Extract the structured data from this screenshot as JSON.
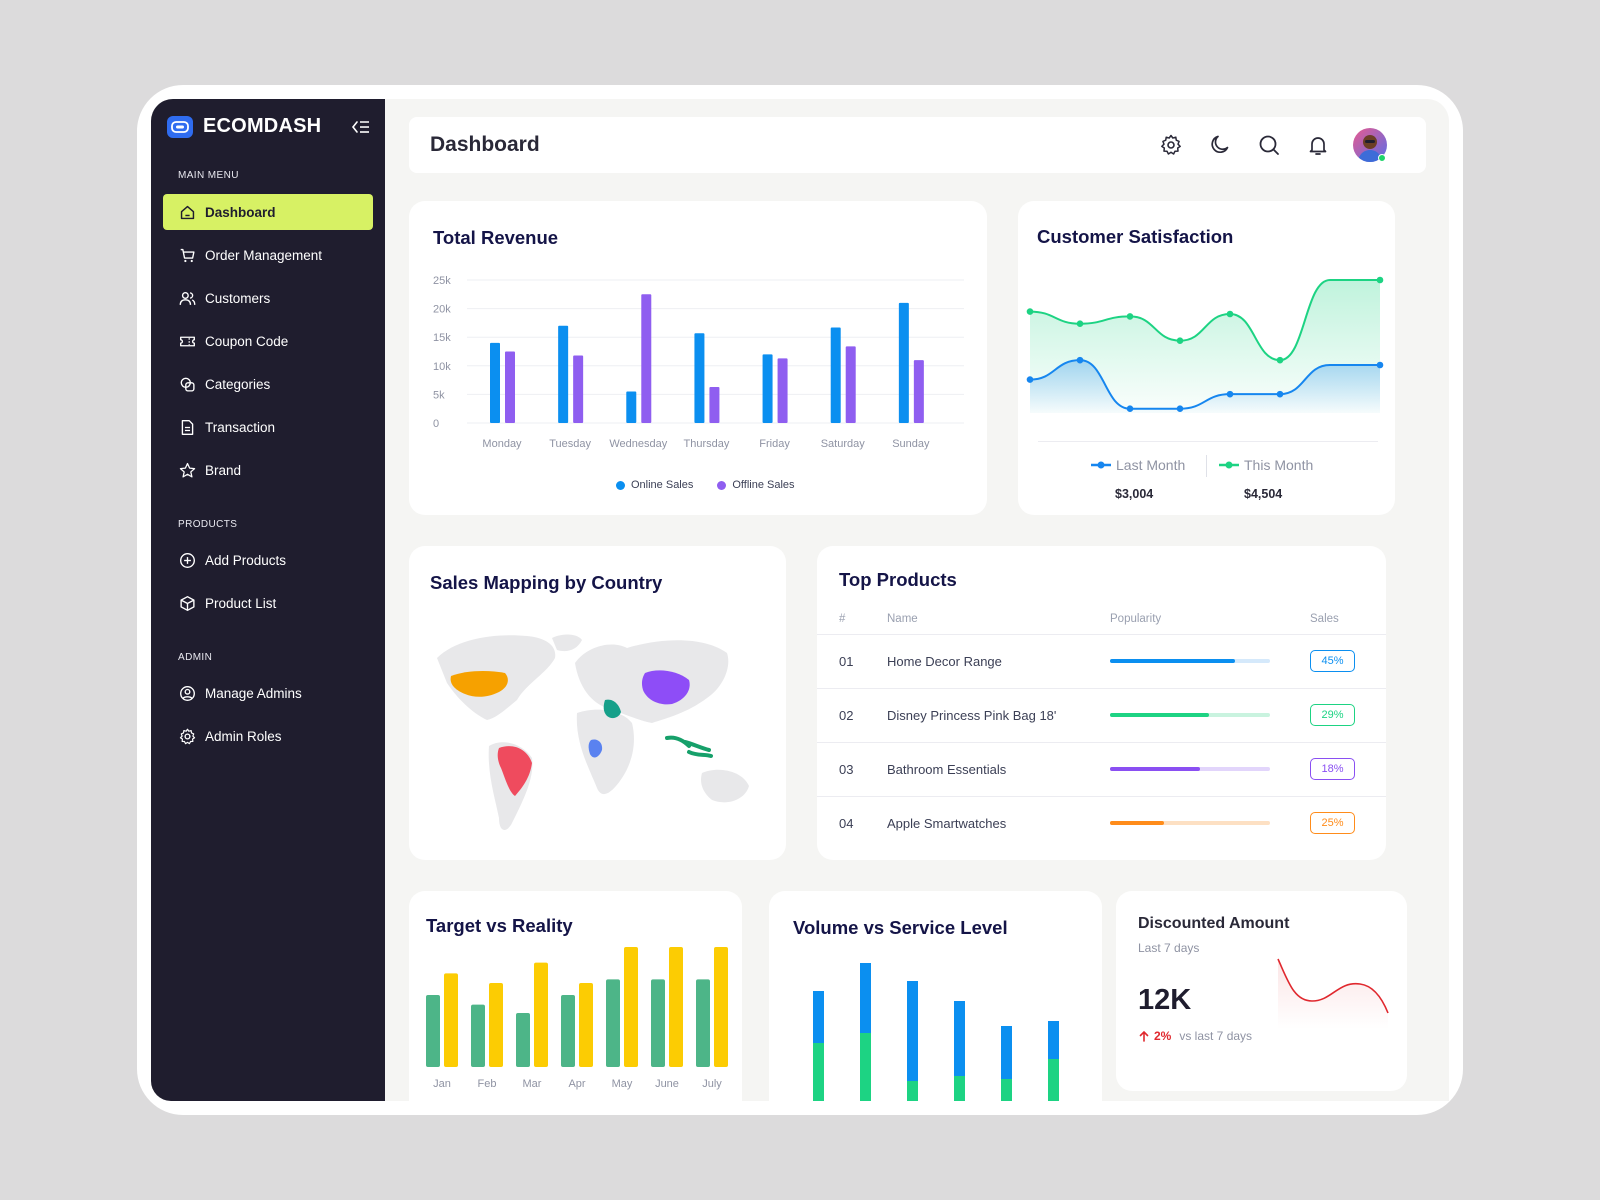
{
  "app": {
    "name": "ECOMDASH"
  },
  "sidebar": {
    "sections": [
      {
        "title": "MAIN MENU",
        "items": [
          "Dashboard",
          "Order Management",
          "Customers",
          "Coupon Code",
          "Categories",
          "Transaction",
          "Brand"
        ]
      },
      {
        "title": "PRODUCTS",
        "items": [
          "Add Products",
          "Product List"
        ]
      },
      {
        "title": "ADMIN",
        "items": [
          "Manage Admins",
          "Admin Roles"
        ]
      }
    ],
    "active": "Dashboard",
    "active_color": "#d7f164",
    "bg_color": "#1f1d2e"
  },
  "header": {
    "title": "Dashboard",
    "icons": [
      "gear-icon",
      "moon-icon",
      "search-icon",
      "bell-icon",
      "avatar"
    ],
    "avatar_status": "online"
  },
  "revenue": {
    "title": "Total Revenue",
    "legend": [
      "Online Sales",
      "Offline Sales"
    ]
  },
  "satisfaction": {
    "title": "Customer Satisfaction",
    "legend": [
      {
        "label": "Last Month",
        "value": "$3,004",
        "color": "#1686ef"
      },
      {
        "label": "This Month",
        "value": "$4,504",
        "color": "#1dd383"
      }
    ]
  },
  "mapping": {
    "title": "Sales Mapping by Country",
    "highlight_colors": {
      "usa": "#f6a100",
      "brazil": "#ef4b5e",
      "china": "#8e4df7",
      "saudi_arabia": "#16a08a",
      "congo": "#5a82f0",
      "indonesia": "#16a06a"
    }
  },
  "top_products": {
    "title": "Top Products",
    "columns": [
      "#",
      "Name",
      "Popularity",
      "Sales"
    ],
    "rows": [
      {
        "no": "01",
        "name": "Home Decor Range",
        "popularity": 0.78,
        "sales": "45%",
        "color": "#0b8ff0",
        "track": "#d5e9fb"
      },
      {
        "no": "02",
        "name": "Disney Princess Pink Bag 18'",
        "popularity": 0.62,
        "sales": "29%",
        "color": "#1dd383",
        "track": "#c9f3df"
      },
      {
        "no": "03",
        "name": "Bathroom Essentials",
        "popularity": 0.56,
        "sales": "18%",
        "color": "#8a4ff2",
        "track": "#e2d5fb"
      },
      {
        "no": "04",
        "name": "Apple Smartwatches",
        "popularity": 0.34,
        "sales": "25%",
        "color": "#ff8c1a",
        "track": "#fde0c3"
      }
    ]
  },
  "target": {
    "title": "Target vs Reality"
  },
  "volume": {
    "title": "Volume vs Service Level"
  },
  "discount": {
    "title": "Discounted Amount",
    "subtitle": "Last 7 days",
    "value": "12K",
    "change": "2%",
    "change_note": "vs last 7 days",
    "trend": "up",
    "line_color": "#e0282e"
  },
  "chart_data": [
    {
      "type": "bar",
      "title": "Total Revenue",
      "categories": [
        "Monday",
        "Tuesday",
        "Wednesday",
        "Thursday",
        "Friday",
        "Saturday",
        "Sunday"
      ],
      "series": [
        {
          "name": "Online Sales",
          "values": [
            14000,
            17000,
            5500,
            15700,
            12000,
            16700,
            21000
          ],
          "color": "#0b8ff0"
        },
        {
          "name": "Offline Sales",
          "values": [
            12500,
            11800,
            22500,
            6300,
            11300,
            13400,
            11000
          ],
          "color": "#8f5ef0"
        }
      ],
      "ylim": [
        0,
        25000
      ],
      "yticks": [
        "0",
        "5k",
        "10k",
        "15k",
        "20k",
        "25k"
      ],
      "grid": true,
      "legend": "bottom"
    },
    {
      "type": "area",
      "title": "Customer Satisfaction",
      "x": [
        1,
        2,
        3,
        4,
        5,
        6,
        7,
        8
      ],
      "series": [
        {
          "name": "Last Month",
          "values": [
            2.2,
            3.0,
            1.0,
            1.0,
            1.6,
            1.6,
            2.8,
            2.8
          ],
          "color": "#1686ef"
        },
        {
          "name": "This Month",
          "values": [
            5.0,
            4.5,
            4.8,
            3.8,
            4.9,
            3.0,
            6.3,
            6.3
          ],
          "color": "#1dd383"
        }
      ],
      "ylim": [
        0,
        7
      ]
    },
    {
      "type": "bar",
      "title": "Target vs Reality",
      "categories": [
        "Jan",
        "Feb",
        "Mar",
        "Apr",
        "May",
        "June",
        "July"
      ],
      "series": [
        {
          "values": [
            6.0,
            5.2,
            4.5,
            6.0,
            7.3,
            7.3,
            7.3
          ],
          "color": "#4db588"
        },
        {
          "values": [
            7.8,
            7.0,
            8.7,
            7.0,
            10.0,
            10.0,
            10.0
          ],
          "color": "#fccc03"
        }
      ],
      "ylim": [
        0,
        10
      ]
    },
    {
      "type": "bar",
      "stacked": true,
      "title": "Volume vs Service Level",
      "categories": [
        "1",
        "2",
        "3",
        "4",
        "5",
        "6"
      ],
      "series": [
        {
          "values": [
            5.8,
            6.8,
            2.0,
            2.5,
            2.2,
            4.2
          ],
          "color": "#1dd383"
        },
        {
          "values": [
            5.2,
            7.0,
            10.0,
            7.5,
            5.3,
            3.8
          ],
          "color": "#0b8ff0"
        }
      ],
      "ylim": [
        0,
        14
      ]
    }
  ]
}
